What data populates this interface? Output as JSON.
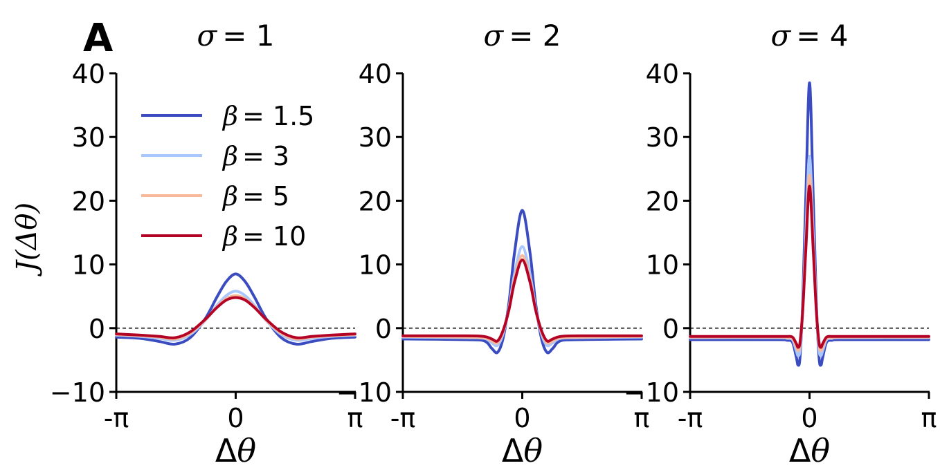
{
  "panel_label": "A",
  "chart_data": [
    {
      "type": "line",
      "title": "σ = 1",
      "title_symbol": "σ",
      "title_value": "= 1",
      "xlabel": "Δθ",
      "ylabel": "J(Δθ)",
      "xticks": [
        "-π",
        "0",
        "π"
      ],
      "xlim": [
        -3.14159,
        3.14159
      ],
      "ylim": [
        -10,
        40
      ],
      "yticks": [
        -10,
        0,
        10,
        20,
        30,
        40
      ],
      "ytick_labels": [
        "−10",
        "0",
        "10",
        "20",
        "30",
        "40"
      ],
      "reference_line": {
        "y": 0,
        "style": "dashed"
      },
      "legend_placement": "upper-left",
      "series": [
        {
          "name": "β = 1.5",
          "color": "#3b4cc0",
          "x": [
            -3.14,
            -2.5,
            -2.0,
            -1.6,
            -1.2,
            -0.8,
            -0.5,
            -0.25,
            0,
            0.25,
            0.5,
            0.8,
            1.2,
            1.6,
            2.0,
            2.5,
            3.14
          ],
          "y": [
            -1.4,
            -1.6,
            -2.1,
            -2.5,
            -1.5,
            1.5,
            4.8,
            7.3,
            8.5,
            7.3,
            4.8,
            1.5,
            -1.5,
            -2.5,
            -2.1,
            -1.6,
            -1.4
          ]
        },
        {
          "name": "β = 3",
          "color": "#aac7fd",
          "x": [
            -3.14,
            -2.5,
            -2.0,
            -1.6,
            -1.2,
            -0.8,
            -0.5,
            -0.25,
            0,
            0.25,
            0.5,
            0.8,
            1.2,
            1.6,
            2.0,
            2.5,
            3.14
          ],
          "y": [
            -1.1,
            -1.3,
            -1.6,
            -1.9,
            -1.0,
            1.2,
            3.5,
            5.1,
            5.8,
            5.1,
            3.5,
            1.2,
            -1.0,
            -1.9,
            -1.6,
            -1.3,
            -1.1
          ]
        },
        {
          "name": "β = 5",
          "color": "#f7b89c",
          "x": [
            -3.14,
            -2.5,
            -2.0,
            -1.6,
            -1.2,
            -0.8,
            -0.5,
            -0.25,
            0,
            0.25,
            0.5,
            0.8,
            1.2,
            1.6,
            2.0,
            2.5,
            3.14
          ],
          "y": [
            -1.0,
            -1.2,
            -1.4,
            -1.7,
            -0.8,
            1.3,
            3.3,
            4.6,
            5.1,
            4.6,
            3.3,
            1.3,
            -0.8,
            -1.7,
            -1.4,
            -1.2,
            -1.0
          ]
        },
        {
          "name": "β = 10",
          "color": "#b40426",
          "x": [
            -3.14,
            -2.5,
            -2.0,
            -1.6,
            -1.2,
            -0.8,
            -0.5,
            -0.25,
            0,
            0.25,
            0.5,
            0.8,
            1.2,
            1.6,
            2.0,
            2.5,
            3.14
          ],
          "y": [
            -0.9,
            -1.1,
            -1.3,
            -1.5,
            -0.6,
            1.4,
            3.2,
            4.4,
            4.8,
            4.4,
            3.2,
            1.4,
            -0.6,
            -1.5,
            -1.3,
            -1.1,
            -0.9
          ]
        }
      ]
    },
    {
      "type": "line",
      "title": "σ = 2",
      "title_symbol": "σ",
      "title_value": "= 2",
      "xlabel": "Δθ",
      "xticks": [
        "-π",
        "0",
        "π"
      ],
      "xlim": [
        -3.14159,
        3.14159
      ],
      "ylim": [
        -10,
        40
      ],
      "yticks": [
        -10,
        0,
        10,
        20,
        30,
        40
      ],
      "ytick_labels": [
        "−10",
        "0",
        "10",
        "20",
        "30",
        "40"
      ],
      "reference_line": {
        "y": 0,
        "style": "dashed"
      },
      "series": [
        {
          "name": "β = 1.5",
          "color": "#3b4cc0",
          "x": [
            -3.14,
            -1.5,
            -1.0,
            -0.8,
            -0.65,
            -0.5,
            -0.35,
            -0.2,
            0,
            0.2,
            0.35,
            0.5,
            0.65,
            0.8,
            1.0,
            1.5,
            3.14
          ],
          "y": [
            -1.7,
            -1.8,
            -2.0,
            -3.2,
            -3.8,
            -1.5,
            4.0,
            12.0,
            18.5,
            12.0,
            4.0,
            -1.5,
            -3.8,
            -3.2,
            -2.0,
            -1.8,
            -1.7
          ]
        },
        {
          "name": "β = 3",
          "color": "#aac7fd",
          "x": [
            -3.14,
            -1.5,
            -1.0,
            -0.8,
            -0.65,
            -0.5,
            -0.35,
            -0.2,
            0,
            0.2,
            0.35,
            0.5,
            0.65,
            0.8,
            1.0,
            1.5,
            3.14
          ],
          "y": [
            -1.4,
            -1.5,
            -1.6,
            -2.3,
            -2.7,
            -0.8,
            3.2,
            8.6,
            12.8,
            8.6,
            3.2,
            -0.8,
            -2.7,
            -2.3,
            -1.6,
            -1.5,
            -1.4
          ]
        },
        {
          "name": "β = 5",
          "color": "#f7b89c",
          "x": [
            -3.14,
            -1.5,
            -1.0,
            -0.8,
            -0.65,
            -0.5,
            -0.35,
            -0.2,
            0,
            0.2,
            0.35,
            0.5,
            0.65,
            0.8,
            1.0,
            1.5,
            3.14
          ],
          "y": [
            -1.3,
            -1.4,
            -1.5,
            -2.0,
            -2.3,
            -0.5,
            3.0,
            7.8,
            11.4,
            7.8,
            3.0,
            -0.5,
            -2.3,
            -2.0,
            -1.5,
            -1.4,
            -1.3
          ]
        },
        {
          "name": "β = 10",
          "color": "#b40426",
          "x": [
            -3.14,
            -1.5,
            -1.0,
            -0.8,
            -0.65,
            -0.5,
            -0.35,
            -0.2,
            0,
            0.2,
            0.35,
            0.5,
            0.65,
            0.8,
            1.0,
            1.5,
            3.14
          ],
          "y": [
            -1.2,
            -1.2,
            -1.3,
            -1.7,
            -2.0,
            -0.3,
            2.9,
            7.3,
            10.7,
            7.3,
            2.9,
            -0.3,
            -2.0,
            -1.7,
            -1.3,
            -1.2,
            -1.2
          ]
        }
      ]
    },
    {
      "type": "line",
      "title": "σ = 4",
      "title_symbol": "σ",
      "title_value": "= 4",
      "xlabel": "Δθ",
      "xticks": [
        "-π",
        "0",
        "π"
      ],
      "xlim": [
        -3.14159,
        3.14159
      ],
      "ylim": [
        -10,
        40
      ],
      "yticks": [
        -10,
        0,
        10,
        20,
        30,
        40
      ],
      "ytick_labels": [
        "−10",
        "0",
        "10",
        "20",
        "30",
        "40"
      ],
      "reference_line": {
        "y": 0,
        "style": "dashed"
      },
      "series": [
        {
          "name": "β = 1.5",
          "color": "#3b4cc0",
          "x": [
            -3.14,
            -0.8,
            -0.6,
            -0.45,
            -0.35,
            -0.3,
            -0.25,
            -0.18,
            -0.1,
            0,
            0.1,
            0.18,
            0.25,
            0.3,
            0.35,
            0.45,
            0.6,
            0.8,
            3.14
          ],
          "y": [
            -1.8,
            -1.8,
            -1.9,
            -2.2,
            -4.5,
            -5.8,
            -4.5,
            4.0,
            20.0,
            38.5,
            20.0,
            4.0,
            -4.5,
            -5.8,
            -4.5,
            -2.2,
            -1.9,
            -1.8,
            -1.8
          ]
        },
        {
          "name": "β = 3",
          "color": "#aac7fd",
          "x": [
            -3.14,
            -0.8,
            -0.6,
            -0.45,
            -0.35,
            -0.3,
            -0.25,
            -0.18,
            -0.1,
            0,
            0.1,
            0.18,
            0.25,
            0.3,
            0.35,
            0.45,
            0.6,
            0.8,
            3.14
          ],
          "y": [
            -1.5,
            -1.5,
            -1.6,
            -1.8,
            -3.5,
            -4.3,
            -3.3,
            3.0,
            14.5,
            27.0,
            14.5,
            3.0,
            -3.3,
            -4.3,
            -3.5,
            -1.8,
            -1.6,
            -1.5,
            -1.5
          ]
        },
        {
          "name": "β = 5",
          "color": "#f7b89c",
          "x": [
            -3.14,
            -0.8,
            -0.6,
            -0.45,
            -0.35,
            -0.3,
            -0.25,
            -0.18,
            -0.1,
            0,
            0.1,
            0.18,
            0.25,
            0.3,
            0.35,
            0.45,
            0.6,
            0.8,
            3.14
          ],
          "y": [
            -1.4,
            -1.4,
            -1.5,
            -1.6,
            -2.9,
            -3.5,
            -2.6,
            2.8,
            13.0,
            24.0,
            13.0,
            2.8,
            -2.6,
            -3.5,
            -2.9,
            -1.6,
            -1.5,
            -1.4,
            -1.4
          ]
        },
        {
          "name": "β = 10",
          "color": "#b40426",
          "x": [
            -3.14,
            -0.8,
            -0.6,
            -0.45,
            -0.35,
            -0.3,
            -0.25,
            -0.18,
            -0.1,
            0,
            0.1,
            0.18,
            0.25,
            0.3,
            0.35,
            0.45,
            0.6,
            0.8,
            3.14
          ],
          "y": [
            -1.3,
            -1.3,
            -1.3,
            -1.4,
            -2.4,
            -3.0,
            -2.2,
            2.6,
            12.0,
            22.3,
            12.0,
            2.6,
            -2.2,
            -3.0,
            -2.4,
            -1.4,
            -1.3,
            -1.3,
            -1.3
          ]
        }
      ]
    }
  ]
}
